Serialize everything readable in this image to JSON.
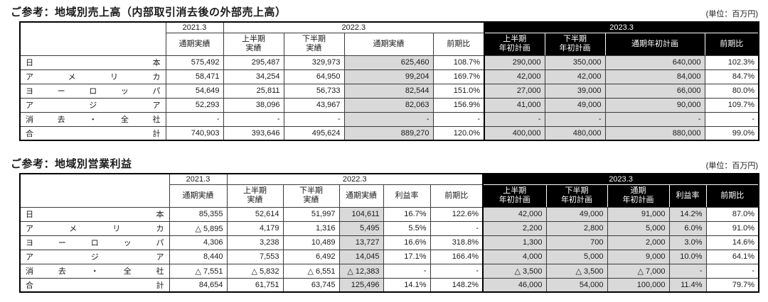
{
  "colors": {
    "header_bg": "#000000",
    "header_text": "#ffffff",
    "cell_gray": "#d9d9d9",
    "grid": "#3a3a3a",
    "text": "#1a1a1a"
  },
  "sales": {
    "title": "ご参考：地域別売上高（内部取引消去後の外部売上高）",
    "unit": "(単位：百万円)",
    "years": [
      "2021.3",
      "2022.3",
      "2023.3"
    ],
    "subheaders": [
      "通期実績",
      "上半期\n実績",
      "下半期\n実績",
      "通期実績",
      "前期比",
      "上半期\n年初計画",
      "下半期\n年初計画",
      "通期年初計画",
      "前期比"
    ],
    "rows": [
      {
        "label": "日本",
        "values": [
          "575,492",
          "295,487",
          "329,973",
          "625,460",
          "108.7%",
          "290,000",
          "350,000",
          "640,000",
          "102.3%"
        ]
      },
      {
        "label": "アメリカ",
        "values": [
          "58,471",
          "34,254",
          "64,950",
          "99,204",
          "169.7%",
          "42,000",
          "42,000",
          "84,000",
          "84.7%"
        ]
      },
      {
        "label": "ヨーロッパ",
        "values": [
          "54,649",
          "25,811",
          "56,733",
          "82,544",
          "151.0%",
          "27,000",
          "39,000",
          "66,000",
          "80.0%"
        ]
      },
      {
        "label": "アジア",
        "values": [
          "52,293",
          "38,096",
          "43,967",
          "82,063",
          "156.9%",
          "41,000",
          "49,000",
          "90,000",
          "109.7%"
        ]
      },
      {
        "label": "消去・全社",
        "values": [
          "-",
          "-",
          "-",
          "-",
          "-",
          "-",
          "-",
          "-",
          "-"
        ]
      },
      {
        "label": "合計",
        "values": [
          "740,903",
          "393,646",
          "495,624",
          "889,270",
          "120.0%",
          "400,000",
          "480,000",
          "880,000",
          "99.0%"
        ]
      }
    ]
  },
  "profit": {
    "title": "ご参考：地域別営業利益",
    "unit": "(単位：百万円)",
    "years": [
      "2021.3",
      "2022.3",
      "2023.3"
    ],
    "subheaders": [
      "通期実績",
      "上半期\n実績",
      "下半期\n実績",
      "通期実績",
      "利益率",
      "前期比",
      "上半期\n年初計画",
      "下半期\n年初計画",
      "通期\n年初計画",
      "利益率",
      "前期比"
    ],
    "rows": [
      {
        "label": "日本",
        "values": [
          "85,355",
          "52,614",
          "51,997",
          "104,611",
          "16.7%",
          "122.6%",
          "42,000",
          "49,000",
          "91,000",
          "14.2%",
          "87.0%"
        ]
      },
      {
        "label": "アメリカ",
        "values": [
          "△ 5,895",
          "4,179",
          "1,316",
          "5,495",
          "5.5%",
          "-",
          "2,200",
          "2,800",
          "5,000",
          "6.0%",
          "91.0%"
        ]
      },
      {
        "label": "ヨーロッパ",
        "values": [
          "4,306",
          "3,238",
          "10,489",
          "13,727",
          "16.6%",
          "318.8%",
          "1,300",
          "700",
          "2,000",
          "3.0%",
          "14.6%"
        ]
      },
      {
        "label": "アジア",
        "values": [
          "8,440",
          "7,553",
          "6,492",
          "14,045",
          "17.1%",
          "166.4%",
          "4,000",
          "5,000",
          "9,000",
          "10.0%",
          "64.1%"
        ]
      },
      {
        "label": "消去・全社",
        "values": [
          "△ 7,551",
          "△ 5,832",
          "△ 6,551",
          "△ 12,383",
          "-",
          "-",
          "△ 3,500",
          "△ 3,500",
          "△ 7,000",
          "-",
          "-"
        ]
      },
      {
        "label": "合計",
        "values": [
          "84,654",
          "61,751",
          "63,745",
          "125,496",
          "14.1%",
          "148.2%",
          "46,000",
          "54,000",
          "100,000",
          "11.4%",
          "79.7%"
        ]
      }
    ]
  }
}
